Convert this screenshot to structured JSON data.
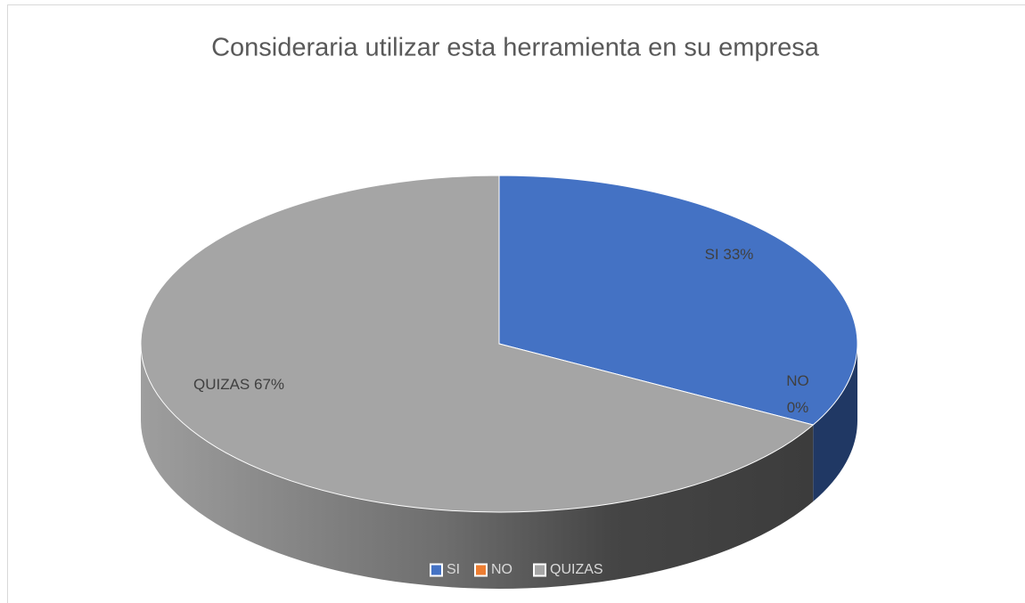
{
  "chart_data": {
    "type": "pie3d",
    "title": "Consideraria utilizar esta herramienta en su empresa",
    "categories": [
      "SI",
      "NO",
      "QUIZAS"
    ],
    "values": [
      33,
      0,
      67
    ],
    "value_labels": [
      "SI 33%",
      "NO 0%",
      "QUIZAS 67%"
    ],
    "colors": [
      "#4472c4",
      "#ed7d31",
      "#a5a5a5"
    ],
    "legend": "bottom"
  }
}
